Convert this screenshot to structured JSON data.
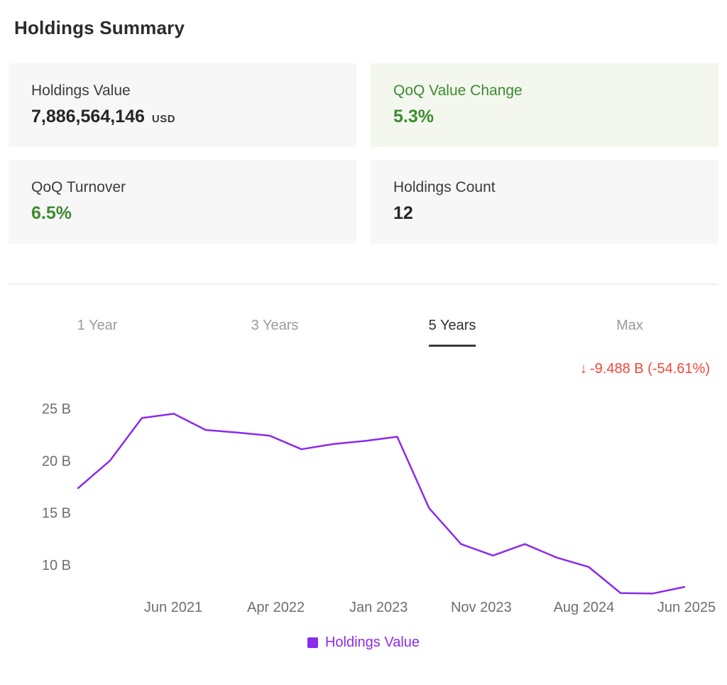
{
  "page": {
    "title": "Holdings Summary"
  },
  "colors": {
    "purple": "#8b2bec",
    "green": "#3d8b2f",
    "red": "#f4453c",
    "card_bg": "#f7f7f7",
    "card_bg_green": "#f3f7ee",
    "divider": "#eef0f4"
  },
  "summary_cards": [
    {
      "label": "Holdings Value",
      "value": "7,886,564,146",
      "unit": "USD"
    },
    {
      "label": "QoQ Value Change",
      "value": "5.3%"
    },
    {
      "label": "QoQ Turnover",
      "value": "6.5%"
    },
    {
      "label": "Holdings Count",
      "value": "12"
    }
  ],
  "range_tabs": [
    {
      "label": "1 Year",
      "active": false
    },
    {
      "label": "3 Years",
      "active": false
    },
    {
      "label": "5 Years",
      "active": true
    },
    {
      "label": "Max",
      "active": false
    }
  ],
  "change_indicator": {
    "arrow": "↓",
    "text": "-9.488 B (-54.61%)"
  },
  "chart_data": {
    "type": "line",
    "unit": "B",
    "grid": false,
    "legend_position": "bottom",
    "ylim_billions": [
      6.7,
      27.2
    ],
    "y_ticks": [
      {
        "value": 25,
        "label": "25 B"
      },
      {
        "value": 20,
        "label": "20 B"
      },
      {
        "value": 15,
        "label": "15 B"
      },
      {
        "value": 10,
        "label": "10 B"
      }
    ],
    "x_labels": [
      "Jun 2021",
      "Apr 2022",
      "Jan 2023",
      "Nov 2023",
      "Aug 2024",
      "Jun 2025"
    ],
    "series": [
      {
        "name": "Holdings Value",
        "color": "#8b2bec",
        "values_billions": [
          17.37,
          20.0,
          24.1,
          24.5,
          22.95,
          22.7,
          22.4,
          21.1,
          21.6,
          21.9,
          22.3,
          15.45,
          12.0,
          10.9,
          12.0,
          10.7,
          9.8,
          7.3,
          7.25,
          7.886
        ]
      }
    ]
  }
}
